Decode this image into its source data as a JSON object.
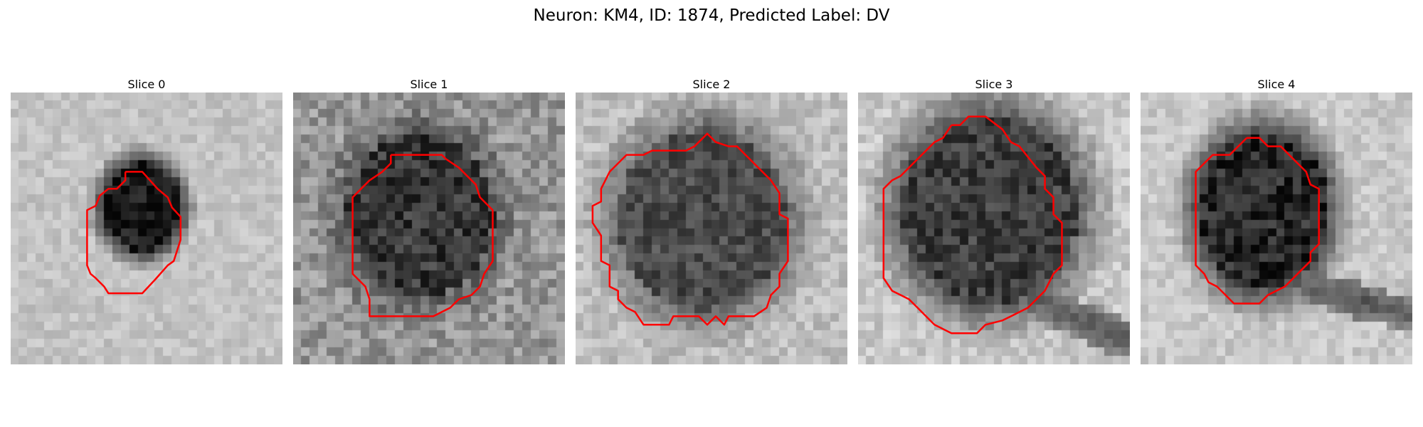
{
  "figure": {
    "title": "Neuron: KM4, ID: 1874, Predicted Label: DV",
    "panels": [
      {
        "title": "Slice 0"
      },
      {
        "title": "Slice 1"
      },
      {
        "title": "Slice 2"
      },
      {
        "title": "Slice 3"
      },
      {
        "title": "Slice 4"
      }
    ]
  },
  "colors": {
    "contour": "#ff0000",
    "background": "#ffffff",
    "image_colormap": "grayscale"
  }
}
